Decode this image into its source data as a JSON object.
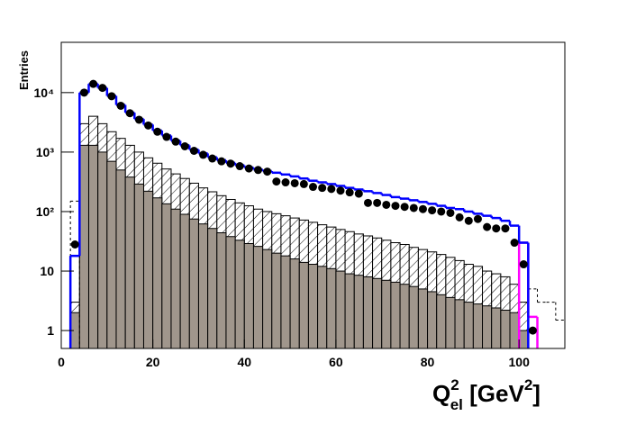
{
  "chart_data": {
    "type": "histogram",
    "y_label": "Entries",
    "x_label": [
      "Q",
      "2",
      "el",
      " [GeV",
      "2",
      "]"
    ],
    "bins": [
      0,
      2,
      4,
      6,
      8,
      10,
      12,
      14,
      16,
      18,
      20,
      22,
      24,
      26,
      28,
      30,
      32,
      34,
      36,
      38,
      40,
      42,
      44,
      46,
      48,
      50,
      52,
      54,
      56,
      58,
      60,
      62,
      64,
      66,
      68,
      70,
      72,
      74,
      76,
      78,
      80,
      82,
      84,
      86,
      88,
      90,
      92,
      94,
      96,
      98,
      100,
      102,
      104,
      106,
      108,
      110
    ],
    "xlim": [
      0,
      110
    ],
    "ylim": [
      0.5,
      70000
    ],
    "log_y": true,
    "xticks": [
      0,
      20,
      40,
      60,
      80,
      100
    ],
    "yticks": [
      1,
      10,
      {
        "value": 100,
        "label": "10²"
      },
      {
        "value": 1000,
        "label": "10³"
      },
      {
        "value": 10000,
        "label": "10⁴"
      }
    ],
    "series": [
      {
        "style": "hatch",
        "color": "#000000",
        "values": [
          null,
          3,
          3000,
          4000,
          3000,
          2200,
          1700,
          1300,
          1000,
          800,
          650,
          520,
          430,
          360,
          300,
          250,
          215,
          185,
          160,
          140,
          125,
          110,
          100,
          92,
          85,
          78,
          72,
          66,
          60,
          55,
          50,
          46,
          42,
          39,
          36,
          33,
          30,
          28,
          25,
          23,
          21,
          19,
          17,
          15,
          13,
          12,
          10,
          9,
          8,
          6,
          3,
          null,
          null,
          null,
          null
        ]
      },
      {
        "style": "fill",
        "color": "#a0968c",
        "values": [
          null,
          2,
          1300,
          1300,
          1000,
          700,
          500,
          380,
          290,
          220,
          170,
          135,
          110,
          90,
          75,
          62,
          52,
          44,
          38,
          33,
          29,
          26,
          23,
          20,
          18,
          16,
          14,
          13,
          12,
          11,
          10,
          9,
          8.5,
          8,
          7.5,
          7,
          6.5,
          6,
          5.5,
          5,
          4.5,
          4,
          3.6,
          3.3,
          3,
          2.8,
          2.6,
          2.4,
          2.2,
          2,
          1,
          null,
          null,
          null,
          null
        ]
      },
      {
        "style": "dashed",
        "color": "#000000",
        "values": [
          null,
          150,
          null,
          null,
          null,
          null,
          null,
          null,
          null,
          null,
          null,
          null,
          null,
          null,
          null,
          null,
          null,
          null,
          null,
          null,
          null,
          null,
          null,
          null,
          null,
          null,
          null,
          null,
          null,
          null,
          null,
          null,
          null,
          null,
          null,
          null,
          null,
          null,
          null,
          null,
          null,
          null,
          null,
          null,
          null,
          null,
          null,
          null,
          null,
          null,
          3,
          5,
          3,
          3,
          1.5
        ]
      },
      {
        "style": "step",
        "color": "#ff00ff",
        "values": [
          null,
          null,
          null,
          null,
          null,
          null,
          null,
          null,
          null,
          null,
          null,
          null,
          null,
          null,
          null,
          null,
          null,
          null,
          null,
          null,
          null,
          null,
          null,
          null,
          null,
          null,
          null,
          null,
          null,
          null,
          null,
          null,
          null,
          null,
          null,
          null,
          null,
          null,
          null,
          null,
          null,
          null,
          null,
          null,
          null,
          null,
          null,
          null,
          null,
          null,
          30,
          1.7,
          null,
          null,
          null
        ]
      },
      {
        "style": "step",
        "color": "#0000ff",
        "values": [
          null,
          18,
          10000,
          14000,
          12000,
          8800,
          6200,
          4600,
          3600,
          2900,
          2300,
          1900,
          1550,
          1300,
          1100,
          950,
          820,
          730,
          660,
          600,
          550,
          510,
          480,
          450,
          420,
          390,
          360,
          330,
          310,
          290,
          270,
          250,
          235,
          220,
          205,
          190,
          175,
          165,
          155,
          145,
          135,
          125,
          115,
          110,
          100,
          92,
          85,
          78,
          70,
          58,
          30,
          null,
          null,
          null,
          null
        ]
      },
      {
        "style": "points",
        "color": "#000000",
        "values": [
          null,
          28,
          10000,
          14000,
          12000,
          8700,
          6000,
          4500,
          3500,
          2800,
          2200,
          1800,
          1500,
          1250,
          1050,
          900,
          780,
          700,
          640,
          580,
          530,
          500,
          470,
          320,
          310,
          300,
          290,
          260,
          250,
          240,
          225,
          210,
          200,
          140,
          140,
          130,
          125,
          120,
          115,
          110,
          105,
          100,
          95,
          80,
          70,
          75,
          55,
          52,
          52,
          30,
          13,
          1,
          null,
          null,
          null
        ]
      }
    ]
  }
}
